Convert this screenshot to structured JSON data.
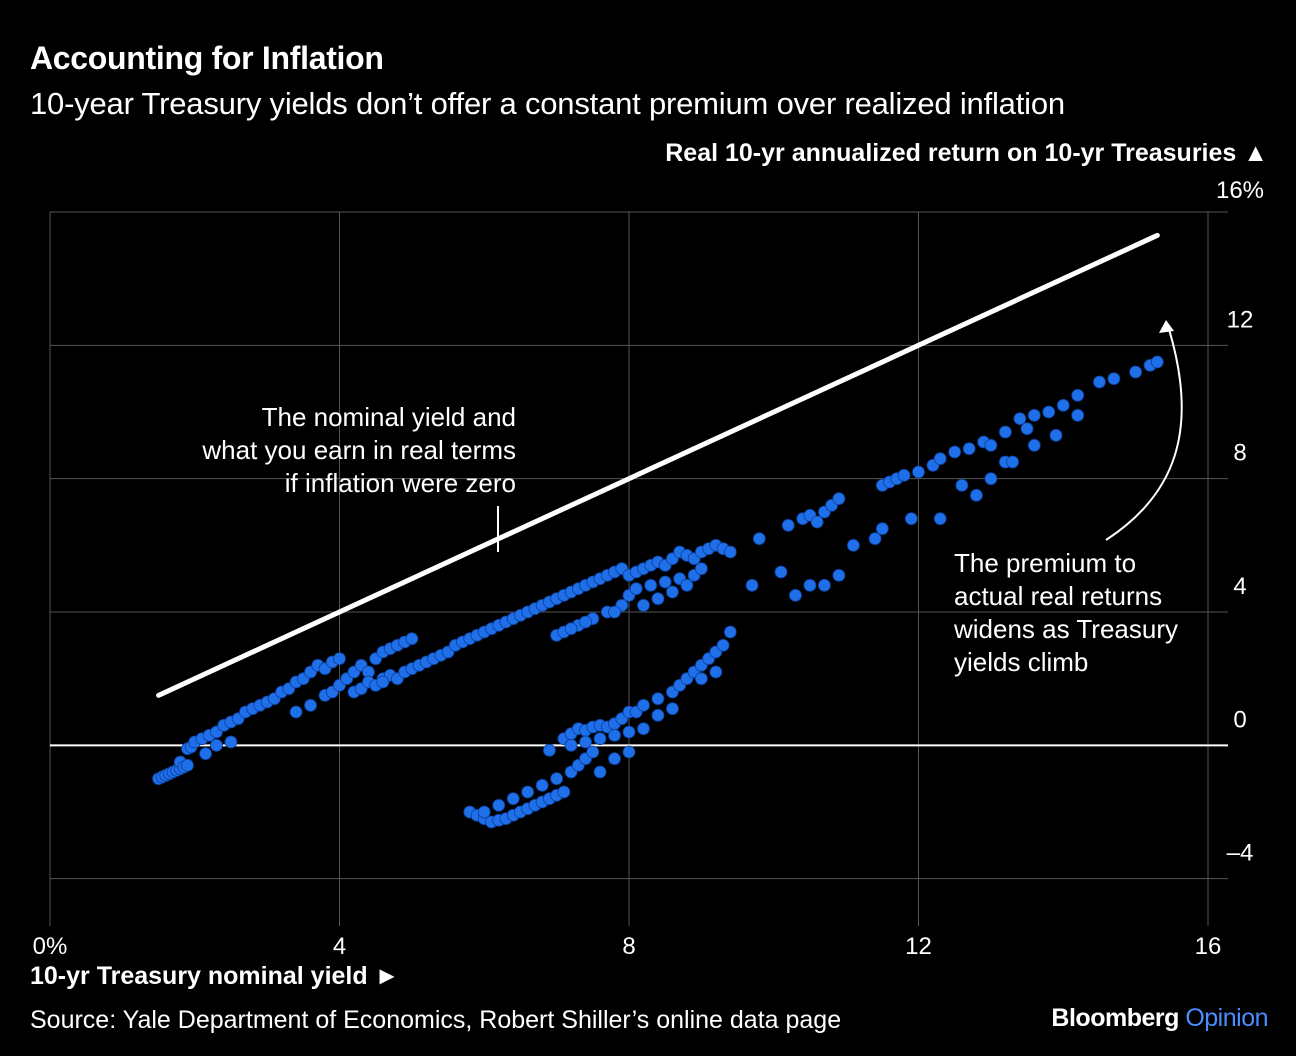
{
  "header": {
    "title": "Accounting for Inflation",
    "subtitle": "10-year Treasury yields don’t offer a constant premium over realized inflation",
    "y_axis_title": "Real 10-yr annualized return on 10-yr Treasuries ▲",
    "x_axis_title": "10-yr Treasury nominal yield ►"
  },
  "footer": {
    "source": "Source: Yale Department of Economics, Robert Shiller’s online data page",
    "brand_main": "Bloomberg",
    "brand_sub": "Opinion"
  },
  "annotations": {
    "line_note": [
      "The nominal yield and",
      "what you earn in real terms",
      "if inflation were zero"
    ],
    "premium_note": [
      "The premium to",
      "actual real returns",
      "widens as Treasury",
      "yields climb"
    ]
  },
  "colors": {
    "points": "#1f6fe8",
    "background": "#000000",
    "reference_line": "#ffffff"
  },
  "chart_data": {
    "type": "scatter",
    "title": "Accounting for Inflation",
    "xlabel": "10-yr Treasury nominal yield",
    "ylabel": "Real 10-yr annualized return on 10-yr Treasuries",
    "xlim": [
      0,
      16
    ],
    "ylim": [
      -5,
      16
    ],
    "x_ticks": [
      {
        "v": 0,
        "label": "0%"
      },
      {
        "v": 4,
        "label": "4"
      },
      {
        "v": 8,
        "label": "8"
      },
      {
        "v": 12,
        "label": "12"
      },
      {
        "v": 16,
        "label": "16"
      }
    ],
    "y_ticks": [
      {
        "v": -4,
        "label": "–4"
      },
      {
        "v": 0,
        "label": "0"
      },
      {
        "v": 4,
        "label": "4"
      },
      {
        "v": 8,
        "label": "8"
      },
      {
        "v": 12,
        "label": "12"
      },
      {
        "v": 16,
        "label": "16%"
      }
    ],
    "grid": true,
    "reference_line": {
      "name": "Zero inflation (real = nominal)",
      "x": [
        1.5,
        15.3
      ],
      "y": [
        1.5,
        15.3
      ]
    },
    "series": [
      {
        "name": "Observed",
        "points": [
          [
            1.5,
            -1.0
          ],
          [
            1.55,
            -0.95
          ],
          [
            1.6,
            -0.9
          ],
          [
            1.65,
            -0.85
          ],
          [
            1.7,
            -0.8
          ],
          [
            1.75,
            -0.75
          ],
          [
            1.8,
            -0.7
          ],
          [
            1.8,
            -0.5
          ],
          [
            1.85,
            -0.65
          ],
          [
            1.9,
            -0.6
          ],
          [
            1.9,
            -0.1
          ],
          [
            1.95,
            -0.05
          ],
          [
            2.0,
            0.1
          ],
          [
            2.1,
            0.2
          ],
          [
            2.15,
            -0.25
          ],
          [
            2.2,
            0.3
          ],
          [
            2.3,
            0.4
          ],
          [
            2.4,
            0.6
          ],
          [
            2.5,
            0.7
          ],
          [
            2.6,
            0.8
          ],
          [
            2.7,
            1.0
          ],
          [
            2.8,
            1.1
          ],
          [
            2.9,
            1.2
          ],
          [
            3.0,
            1.3
          ],
          [
            3.1,
            1.4
          ],
          [
            3.2,
            1.6
          ],
          [
            3.3,
            1.7
          ],
          [
            3.4,
            1.9
          ],
          [
            3.5,
            2.0
          ],
          [
            3.6,
            2.2
          ],
          [
            3.7,
            2.4
          ],
          [
            3.8,
            2.3
          ],
          [
            3.9,
            2.5
          ],
          [
            3.6,
            1.2
          ],
          [
            3.8,
            1.5
          ],
          [
            3.9,
            1.6
          ],
          [
            4.0,
            2.6
          ],
          [
            4.0,
            1.8
          ],
          [
            4.1,
            2.0
          ],
          [
            4.2,
            2.2
          ],
          [
            4.3,
            2.4
          ],
          [
            4.4,
            2.2
          ],
          [
            4.5,
            2.6
          ],
          [
            4.6,
            2.8
          ],
          [
            4.7,
            2.9
          ],
          [
            4.8,
            3.0
          ],
          [
            4.9,
            3.1
          ],
          [
            5.0,
            3.2
          ],
          [
            4.2,
            1.6
          ],
          [
            4.3,
            1.7
          ],
          [
            4.4,
            1.9
          ],
          [
            4.5,
            1.8
          ],
          [
            4.6,
            2.0
          ],
          [
            4.7,
            2.1
          ],
          [
            4.8,
            2.0
          ],
          [
            4.9,
            2.2
          ],
          [
            5.0,
            2.3
          ],
          [
            5.1,
            2.4
          ],
          [
            5.2,
            2.5
          ],
          [
            5.3,
            2.6
          ],
          [
            5.4,
            2.7
          ],
          [
            5.5,
            2.8
          ],
          [
            5.6,
            3.0
          ],
          [
            5.7,
            3.1
          ],
          [
            5.8,
            3.2
          ],
          [
            5.9,
            3.3
          ],
          [
            6.0,
            3.4
          ],
          [
            6.1,
            3.5
          ],
          [
            6.2,
            3.6
          ],
          [
            6.3,
            3.7
          ],
          [
            6.4,
            3.8
          ],
          [
            6.5,
            3.9
          ],
          [
            6.6,
            4.0
          ],
          [
            6.7,
            4.1
          ],
          [
            6.8,
            4.2
          ],
          [
            6.9,
            4.3
          ],
          [
            7.0,
            4.4
          ],
          [
            7.1,
            4.5
          ],
          [
            7.2,
            4.6
          ],
          [
            7.3,
            4.7
          ],
          [
            7.4,
            4.8
          ],
          [
            7.5,
            4.9
          ],
          [
            7.6,
            5.0
          ],
          [
            7.7,
            5.1
          ],
          [
            7.8,
            5.2
          ],
          [
            7.9,
            5.3
          ],
          [
            8.0,
            5.1
          ],
          [
            8.1,
            5.2
          ],
          [
            8.2,
            5.3
          ],
          [
            8.3,
            5.4
          ],
          [
            8.4,
            5.5
          ],
          [
            8.5,
            5.4
          ],
          [
            8.6,
            5.6
          ],
          [
            8.7,
            5.8
          ],
          [
            8.8,
            5.7
          ],
          [
            8.9,
            5.6
          ],
          [
            9.0,
            5.8
          ],
          [
            9.1,
            5.9
          ],
          [
            9.2,
            6.0
          ],
          [
            9.3,
            5.9
          ],
          [
            9.4,
            5.8
          ],
          [
            7.0,
            3.3
          ],
          [
            7.1,
            3.4
          ],
          [
            7.3,
            3.6
          ],
          [
            7.5,
            3.8
          ],
          [
            7.7,
            4.0
          ],
          [
            7.9,
            4.2
          ],
          [
            8.0,
            4.5
          ],
          [
            8.1,
            4.7
          ],
          [
            8.3,
            4.8
          ],
          [
            8.5,
            4.9
          ],
          [
            8.7,
            5.0
          ],
          [
            8.9,
            5.1
          ],
          [
            9.0,
            5.3
          ],
          [
            8.8,
            4.8
          ],
          [
            8.6,
            4.6
          ],
          [
            8.4,
            4.4
          ],
          [
            9.8,
            6.2
          ],
          [
            10.2,
            6.6
          ],
          [
            10.4,
            6.8
          ],
          [
            10.5,
            6.9
          ],
          [
            10.6,
            6.7
          ],
          [
            10.7,
            7.0
          ],
          [
            10.8,
            7.2
          ],
          [
            10.9,
            7.4
          ],
          [
            11.5,
            7.8
          ],
          [
            11.6,
            7.9
          ],
          [
            11.7,
            8.0
          ],
          [
            11.8,
            8.1
          ],
          [
            12.0,
            8.2
          ],
          [
            12.2,
            8.4
          ],
          [
            12.3,
            8.6
          ],
          [
            12.5,
            8.8
          ],
          [
            12.7,
            8.9
          ],
          [
            12.9,
            9.1
          ],
          [
            13.2,
            9.4
          ],
          [
            13.4,
            9.8
          ],
          [
            13.6,
            9.9
          ],
          [
            13.8,
            10.0
          ],
          [
            14.0,
            10.2
          ],
          [
            14.2,
            10.5
          ],
          [
            14.5,
            10.9
          ],
          [
            14.7,
            11.0
          ],
          [
            15.0,
            11.2
          ],
          [
            15.2,
            11.4
          ],
          [
            15.3,
            11.5
          ],
          [
            2.3,
            0.0
          ],
          [
            2.5,
            0.1
          ],
          [
            3.4,
            1.0
          ],
          [
            4.6,
            1.9
          ],
          [
            7.2,
            3.5
          ],
          [
            7.4,
            3.7
          ],
          [
            7.8,
            4.0
          ],
          [
            8.2,
            4.2
          ],
          [
            9.7,
            4.8
          ],
          [
            10.1,
            5.2
          ],
          [
            10.3,
            4.5
          ],
          [
            10.5,
            4.8
          ],
          [
            10.7,
            4.8
          ],
          [
            10.9,
            5.1
          ],
          [
            11.1,
            6.0
          ],
          [
            11.4,
            6.2
          ],
          [
            11.5,
            6.5
          ],
          [
            11.9,
            6.8
          ],
          [
            12.3,
            6.8
          ],
          [
            12.6,
            7.8
          ],
          [
            12.8,
            7.5
          ],
          [
            13.0,
            8.0
          ],
          [
            13.2,
            8.5
          ],
          [
            13.0,
            9.0
          ],
          [
            13.3,
            8.5
          ],
          [
            13.5,
            9.5
          ],
          [
            13.6,
            9.0
          ],
          [
            13.9,
            9.3
          ],
          [
            14.2,
            9.9
          ],
          [
            5.8,
            -2.0
          ],
          [
            5.9,
            -2.1
          ],
          [
            6.0,
            -2.2
          ],
          [
            6.1,
            -2.3
          ],
          [
            6.2,
            -2.25
          ],
          [
            6.3,
            -2.2
          ],
          [
            6.4,
            -2.1
          ],
          [
            6.5,
            -2.0
          ],
          [
            6.6,
            -1.9
          ],
          [
            6.7,
            -1.8
          ],
          [
            6.8,
            -1.7
          ],
          [
            6.9,
            -1.6
          ],
          [
            7.0,
            -1.5
          ],
          [
            7.1,
            -1.4
          ],
          [
            6.0,
            -2.0
          ],
          [
            6.2,
            -1.8
          ],
          [
            6.4,
            -1.6
          ],
          [
            6.6,
            -1.4
          ],
          [
            6.8,
            -1.2
          ],
          [
            7.0,
            -1.0
          ],
          [
            7.2,
            -0.8
          ],
          [
            7.3,
            -0.6
          ],
          [
            7.4,
            -0.4
          ],
          [
            7.5,
            -0.2
          ],
          [
            6.9,
            -0.15
          ],
          [
            7.1,
            0.2
          ],
          [
            7.2,
            0.35
          ],
          [
            7.3,
            0.5
          ],
          [
            7.4,
            0.45
          ],
          [
            7.5,
            0.55
          ],
          [
            7.6,
            0.6
          ],
          [
            7.7,
            0.55
          ],
          [
            7.8,
            0.65
          ],
          [
            7.9,
            0.8
          ],
          [
            8.0,
            1.0
          ],
          [
            8.1,
            1.0
          ],
          [
            8.2,
            1.2
          ],
          [
            8.4,
            1.4
          ],
          [
            8.6,
            1.6
          ],
          [
            8.7,
            1.8
          ],
          [
            8.8,
            2.0
          ],
          [
            8.9,
            2.2
          ],
          [
            9.0,
            2.4
          ],
          [
            9.1,
            2.6
          ],
          [
            9.2,
            2.8
          ],
          [
            9.3,
            3.0
          ],
          [
            9.4,
            3.4
          ],
          [
            7.2,
            0.0
          ],
          [
            7.4,
            0.1
          ],
          [
            7.6,
            0.2
          ],
          [
            7.8,
            0.3
          ],
          [
            8.0,
            0.4
          ],
          [
            8.2,
            0.5
          ],
          [
            8.4,
            0.9
          ],
          [
            8.6,
            1.1
          ],
          [
            9.0,
            2.0
          ],
          [
            9.2,
            2.2
          ],
          [
            7.6,
            -0.8
          ],
          [
            7.8,
            -0.4
          ],
          [
            8.0,
            -0.2
          ]
        ]
      }
    ]
  }
}
